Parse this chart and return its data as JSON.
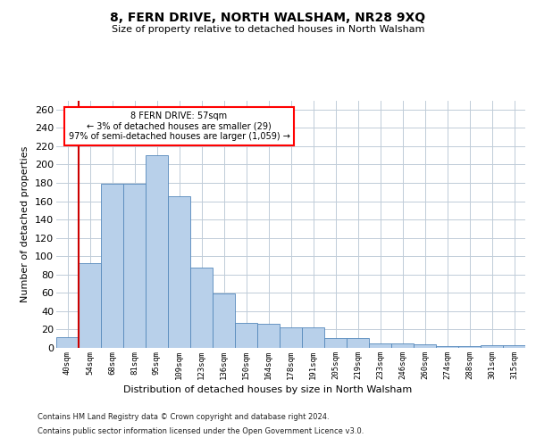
{
  "title": "8, FERN DRIVE, NORTH WALSHAM, NR28 9XQ",
  "subtitle": "Size of property relative to detached houses in North Walsham",
  "xlabel": "Distribution of detached houses by size in North Walsham",
  "ylabel": "Number of detached properties",
  "footer_line1": "Contains HM Land Registry data © Crown copyright and database right 2024.",
  "footer_line2": "Contains public sector information licensed under the Open Government Licence v3.0.",
  "annotation_line1": "8 FERN DRIVE: 57sqm",
  "annotation_line2": "← 3% of detached houses are smaller (29)",
  "annotation_line3": "97% of semi-detached houses are larger (1,059) →",
  "bar_color": "#b8d0ea",
  "bar_edge_color": "#5588bb",
  "marker_line_color": "#cc0000",
  "categories": [
    "40sqm",
    "54sqm",
    "68sqm",
    "81sqm",
    "95sqm",
    "109sqm",
    "123sqm",
    "136sqm",
    "150sqm",
    "164sqm",
    "178sqm",
    "191sqm",
    "205sqm",
    "219sqm",
    "233sqm",
    "246sqm",
    "260sqm",
    "274sqm",
    "288sqm",
    "301sqm",
    "315sqm"
  ],
  "values": [
    12,
    92,
    179,
    179,
    210,
    165,
    88,
    59,
    27,
    26,
    22,
    22,
    11,
    11,
    5,
    5,
    4,
    2,
    2,
    3,
    3
  ],
  "marker_bar_index": 1,
  "ylim": [
    0,
    270
  ],
  "yticks": [
    0,
    20,
    40,
    60,
    80,
    100,
    120,
    140,
    160,
    180,
    200,
    220,
    240,
    260
  ],
  "background_color": "#ffffff",
  "grid_color": "#c0ccd8"
}
